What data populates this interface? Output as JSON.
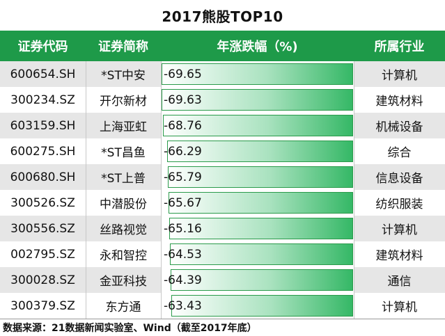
{
  "title": "2017熊股TOP10",
  "columns": [
    "证券代码",
    "证券简称",
    "年涨跌幅（%)",
    "所属行业"
  ],
  "rows": [
    {
      "code": "600654.SH",
      "name": "*ST中安",
      "change": "-69.65",
      "industry": "计算机"
    },
    {
      "code": "300234.SZ",
      "name": "开尔新材",
      "change": "-69.63",
      "industry": "建筑材料"
    },
    {
      "code": "603159.SH",
      "name": "上海亚虹",
      "change": "-68.76",
      "industry": "机械设备"
    },
    {
      "code": "600275.SH",
      "name": "*ST昌鱼",
      "change": "-66.29",
      "industry": "综合"
    },
    {
      "code": "600680.SH",
      "name": "*ST上普",
      "change": "-65.79",
      "industry": "信息设备"
    },
    {
      "code": "300526.SZ",
      "name": "中潜股份",
      "change": "-65.67",
      "industry": "纺织服装"
    },
    {
      "code": "300556.SZ",
      "name": "丝路视觉",
      "change": "-65.16",
      "industry": "计算机"
    },
    {
      "code": "002795.SZ",
      "name": "永和智控",
      "change": "-64.53",
      "industry": "建筑材料"
    },
    {
      "code": "300028.SZ",
      "name": "金亚科技",
      "change": "-64.39",
      "industry": "通信"
    },
    {
      "code": "300379.SZ",
      "name": "东方通",
      "change": "-63.43",
      "industry": "计算机"
    }
  ],
  "footer": "数据来源：21数据新闻实验室、Wind（截至2017年底）",
  "colors": {
    "header_bg": "#1e9a49",
    "bar_green": "#35b866"
  }
}
